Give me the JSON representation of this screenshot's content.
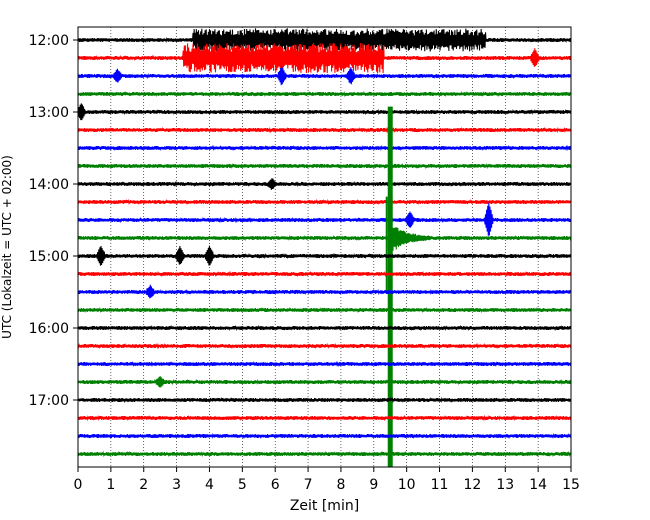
{
  "chart_data": {
    "type": "line",
    "title": "",
    "xlabel": "Zeit  [min]",
    "ylabel": "UTC (Lokalzeit = UTC + 02:00)",
    "xlim": [
      0,
      15
    ],
    "x_ticks": [
      "0",
      "1",
      "2",
      "3",
      "4",
      "5",
      "6",
      "7",
      "8",
      "9",
      "10",
      "11",
      "12",
      "13",
      "14",
      "15"
    ],
    "y_ticks": [
      "12:00",
      "13:00",
      "14:00",
      "15:00",
      "16:00",
      "17:00"
    ],
    "grid": {
      "x": true,
      "style": "dotted"
    },
    "trace_start": "12:00",
    "trace_interval_min": 15,
    "trace_count": 24,
    "trace_colors": [
      "#000000",
      "#ff0000",
      "#0000ff",
      "#008000"
    ],
    "events": [
      {
        "trace_time": "12:00",
        "type": "noise_burst",
        "x_start": 3.5,
        "x_end": 12.4,
        "amplitude": 0.55
      },
      {
        "trace_time": "12:15",
        "type": "noise_burst",
        "x_start": 3.2,
        "x_end": 9.3,
        "amplitude": 0.75
      },
      {
        "trace_time": "12:15",
        "type": "spike",
        "x": 13.9,
        "amplitude": 0.45
      },
      {
        "trace_time": "12:30",
        "type": "spike",
        "x": 1.2,
        "amplitude": 0.3
      },
      {
        "trace_time": "12:30",
        "type": "spike",
        "x": 6.2,
        "amplitude": 0.45
      },
      {
        "trace_time": "12:30",
        "type": "spike",
        "x": 8.3,
        "amplitude": 0.4
      },
      {
        "trace_time": "13:00",
        "type": "spike",
        "x": 0.1,
        "amplitude": 0.4
      },
      {
        "trace_time": "14:00",
        "type": "spike",
        "x": 5.9,
        "amplitude": 0.25
      },
      {
        "trace_time": "14:30",
        "type": "spike",
        "x": 12.5,
        "amplitude": 0.9
      },
      {
        "trace_time": "14:30",
        "type": "spike",
        "x": 10.1,
        "amplitude": 0.4
      },
      {
        "trace_time": "14:45",
        "type": "earthquake",
        "x": 9.5,
        "amplitude_up": 7.3,
        "amplitude_down": 13.2
      },
      {
        "trace_time": "15:00",
        "type": "spike",
        "x": 0.7,
        "amplitude": 0.5
      },
      {
        "trace_time": "15:00",
        "type": "spike",
        "x": 3.1,
        "amplitude": 0.45
      },
      {
        "trace_time": "15:00",
        "type": "spike",
        "x": 4.0,
        "amplitude": 0.5
      },
      {
        "trace_time": "15:30",
        "type": "spike",
        "x": 2.2,
        "amplitude": 0.3
      },
      {
        "trace_time": "16:45",
        "type": "spike",
        "x": 2.5,
        "amplitude": 0.25
      }
    ]
  }
}
